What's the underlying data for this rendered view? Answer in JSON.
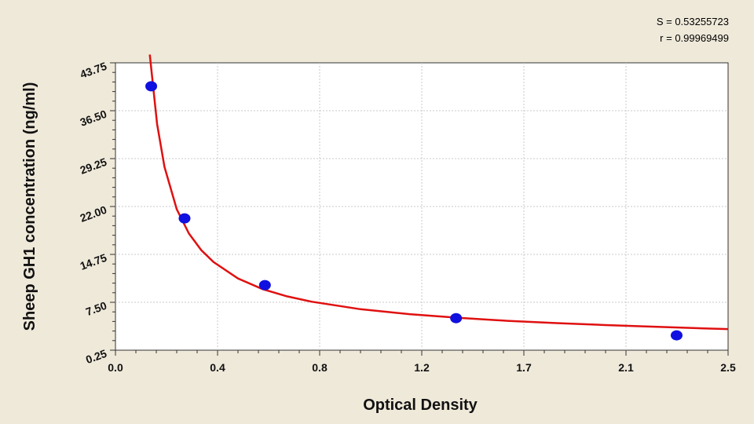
{
  "stats": {
    "s_text": "S = 0.53255723",
    "r_text": "r = 0.99969499"
  },
  "chart_data": {
    "type": "scatter",
    "title": "",
    "xlabel": "Optical Density",
    "ylabel": "Sheep GH1 concentration (ng/ml)",
    "x_ticks": [
      "0.0",
      "0.4",
      "0.8",
      "1.2",
      "1.7",
      "2.1",
      "2.5"
    ],
    "y_ticks": [
      "0.25",
      "7.50",
      "14.75",
      "22.00",
      "29.25",
      "36.50",
      "43.75"
    ],
    "xlim": [
      0,
      2.5
    ],
    "ylim": [
      0.25,
      43.75
    ],
    "grid": true,
    "colors": {
      "points": "#1010e0",
      "curve": "#e01010"
    },
    "series": [
      {
        "type": "scatter",
        "x": [
          0.146,
          0.282,
          0.61,
          1.39,
          2.29
        ],
        "y": [
          40.2,
          20.2,
          10.1,
          5.1,
          2.5
        ]
      },
      {
        "type": "line",
        "x": [
          0.14,
          0.17,
          0.2,
          0.25,
          0.3,
          0.35,
          0.4,
          0.5,
          0.6,
          0.7,
          0.8,
          1.0,
          1.2,
          1.4,
          1.6,
          1.8,
          2.0,
          2.2,
          2.4,
          2.5
        ],
        "y": [
          45,
          34.5,
          28,
          21.6,
          17.9,
          15.4,
          13.6,
          11.1,
          9.5,
          8.4,
          7.6,
          6.45,
          5.7,
          5.15,
          4.7,
          4.35,
          4.05,
          3.8,
          3.55,
          3.45
        ]
      }
    ]
  }
}
